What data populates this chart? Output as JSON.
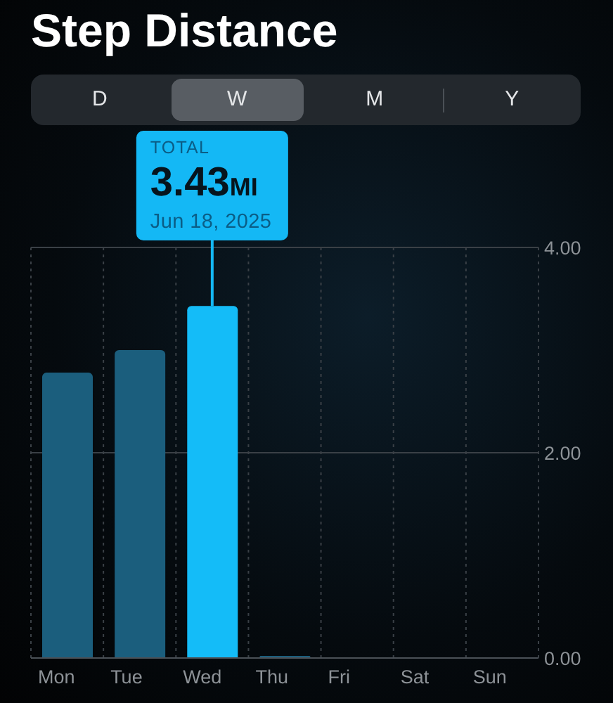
{
  "chart_data": {
    "type": "bar",
    "title": "Step Distance",
    "categories": [
      "Mon",
      "Tue",
      "Wed",
      "Thu",
      "Fri",
      "Sat",
      "Sun"
    ],
    "values": [
      2.78,
      3.0,
      3.43,
      0.02,
      null,
      null,
      null
    ],
    "colors": [
      "#1b5e7d",
      "#1b5e7d",
      "#14bcf8",
      "#1b5e7d",
      "#1b5e7d",
      "#1b5e7d",
      "#1b5e7d"
    ],
    "ylim": [
      0,
      4
    ],
    "yticks": [
      {
        "value": 0,
        "label": "0.00"
      },
      {
        "value": 2,
        "label": "2.00"
      },
      {
        "value": 4,
        "label": "4.00"
      }
    ],
    "grid": true,
    "annotations": [
      "D",
      "W",
      "M",
      "Y",
      {
        "text": "TOTAL\n3.43MI\nJun 18, 2025",
        "x": "Wed",
        "y": 3.43
      }
    ]
  }
}
